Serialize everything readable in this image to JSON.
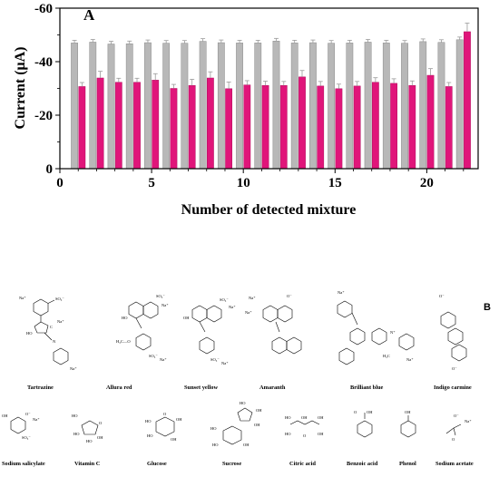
{
  "chart_data": {
    "type": "bar",
    "panel_label": "A",
    "xlabel": "Number of detected mixture",
    "ylabel": "Current (μA)",
    "x": [
      1,
      2,
      3,
      4,
      5,
      6,
      7,
      8,
      9,
      10,
      11,
      12,
      13,
      14,
      15,
      16,
      17,
      18,
      19,
      20,
      21,
      22
    ],
    "xlim": [
      0,
      22.8
    ],
    "ylim": [
      0,
      -60
    ],
    "x_ticks": [
      0,
      5,
      10,
      15,
      20
    ],
    "x_tick_labels": [
      "0",
      "5",
      "10",
      "15",
      "20"
    ],
    "y_ticks": [
      0,
      -20,
      -40,
      -60
    ],
    "y_tick_labels": [
      "0",
      "-20",
      "-40",
      "-60"
    ],
    "grid": false,
    "series": [
      {
        "color": "#b8b8b8",
        "values": [
          -47.0,
          -47.3,
          -46.6,
          -46.7,
          -47.1,
          -46.9,
          -46.9,
          -47.6,
          -47.1,
          -47.0,
          -47.0,
          -47.7,
          -47.0,
          -47.1,
          -46.9,
          -47.0,
          -47.3,
          -47.0,
          -46.9,
          -47.5,
          -47.2,
          -48.2
        ],
        "errors": [
          1.0,
          1.0,
          1.0,
          1.0,
          1.0,
          1.0,
          1.0,
          1.0,
          1.0,
          1.0,
          1.0,
          1.0,
          1.0,
          1.0,
          1.0,
          1.0,
          1.0,
          1.0,
          1.0,
          1.0,
          1.0,
          1.0
        ]
      },
      {
        "color": "#e0157a",
        "values": [
          -30.7,
          -33.9,
          -32.3,
          -32.3,
          -33.1,
          -30.0,
          -31.1,
          -33.9,
          -29.9,
          -31.3,
          -31.1,
          -31.1,
          -34.3,
          -30.9,
          -29.9,
          -30.9,
          -32.3,
          -31.9,
          -31.1,
          -34.9,
          -30.7,
          -51.2
        ],
        "errors": [
          1.5,
          2.5,
          1.5,
          1.5,
          2.4,
          1.5,
          2.3,
          2.3,
          2.5,
          1.6,
          1.6,
          1.5,
          2.4,
          1.7,
          1.7,
          1.7,
          1.7,
          1.7,
          1.7,
          2.5,
          1.5,
          3.2
        ]
      }
    ]
  },
  "panel_b": {
    "label": "B",
    "row1": [
      "Tartrazine",
      "Allura red",
      "Sunset yellow",
      "Amaranth",
      "Brilliant blue",
      "Indigo carmine"
    ],
    "row2": [
      "Sodium salicylate",
      "Vitamin C",
      "Glucose",
      "Sucrose",
      "Citric acid",
      "Benzoic acid",
      "Phenol",
      "Sodium acetate"
    ]
  }
}
